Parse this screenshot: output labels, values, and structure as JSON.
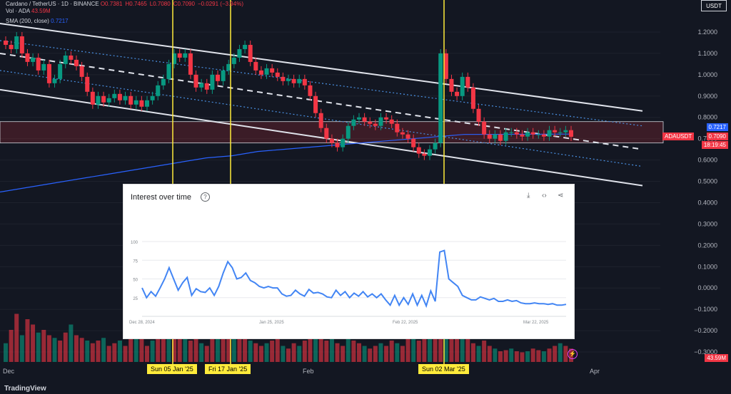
{
  "header": {
    "symbol_title": "Cardano / TetherUS · 1D · BINANCE",
    "ohlc_values": [
      "O0.7381",
      "H0.7465",
      "L0.7080",
      "C0.7090",
      "−0.0291 (−3.94%)"
    ],
    "vol_label": "Vol · ADA",
    "vol_value": "43.59M",
    "sma_label": "SMA (200, close)",
    "sma_value": "0.7217",
    "unit": "USDT"
  },
  "price_labels": {
    "sma": "0.7217",
    "symbol": "ADAUSDT",
    "last": "0.7090",
    "countdown": "18:19:45",
    "volume": "43.59M"
  },
  "footer": {
    "brand": "TradingView"
  },
  "marked_dates": [
    "Sun 05 Jan '25",
    "Fri 17 Jan '25",
    "Sun 02 Mar '25"
  ],
  "colors": {
    "up": "#089981",
    "down": "#f23645",
    "sma": "#2962ff",
    "marker": "#ffeb3b",
    "trends": "#4a90e2"
  },
  "chart_data": [
    {
      "type": "candlestick",
      "title": "Cardano / TetherUS · 1D · BINANCE",
      "ylabel": "USDT",
      "ylim": [
        -0.3,
        1.28
      ],
      "yticks": [
        1.2,
        1.1,
        1.0,
        0.9,
        0.8,
        0.7,
        0.6,
        0.5,
        0.4,
        0.3,
        0.2,
        0.1,
        0.0,
        -0.1,
        -0.2,
        -0.3
      ],
      "ytick_labels": [
        "1.2000",
        "1.1000",
        "1.0000",
        "0.9000",
        "0.8000",
        "0.7000",
        "0.6000",
        "0.5000",
        "0.4000",
        "0.3000",
        "0.2000",
        "0.1000",
        "0.0000",
        "−0.1000",
        "−0.2000",
        "−0.3000"
      ],
      "xtick_labels": [
        "Dec",
        "Feb",
        "Apr"
      ],
      "close": [
        1.14,
        1.12,
        1.18,
        1.1,
        1.06,
        1.08,
        1.02,
        1.05,
        0.96,
        0.98,
        1.05,
        1.09,
        1.07,
        1.04,
        0.99,
        0.92,
        0.86,
        0.9,
        0.87,
        0.89,
        0.91,
        0.88,
        0.9,
        0.86,
        0.88,
        0.85,
        0.88,
        0.9,
        0.95,
        0.98,
        1.05,
        1.1,
        1.08,
        1.1,
        1.0,
        0.94,
        0.96,
        0.93,
        1.0,
        0.97,
        1.02,
        1.05,
        1.08,
        1.12,
        1.14,
        1.06,
        1.02,
        1.0,
        1.03,
        1.01,
        0.99,
        0.97,
        0.98,
        0.96,
        0.98,
        0.95,
        0.9,
        0.82,
        0.75,
        0.7,
        0.68,
        0.66,
        0.7,
        0.76,
        0.79,
        0.8,
        0.78,
        0.77,
        0.76,
        0.8,
        0.79,
        0.77,
        0.73,
        0.72,
        0.7,
        0.66,
        0.63,
        0.62,
        0.65,
        0.68,
        1.1,
        0.98,
        0.92,
        0.9,
        0.99,
        0.94,
        0.84,
        0.78,
        0.72,
        0.7,
        0.72,
        0.69,
        0.73,
        0.73,
        0.72,
        0.71,
        0.73,
        0.72,
        0.72,
        0.71,
        0.74,
        0.73,
        0.73,
        0.74,
        0.709
      ],
      "sma_200": [
        0.45,
        0.47,
        0.49,
        0.51,
        0.53,
        0.55,
        0.57,
        0.59,
        0.61,
        0.62,
        0.64,
        0.65,
        0.66,
        0.67,
        0.68,
        0.69,
        0.7,
        0.71,
        0.72
      ],
      "volume_relative": [
        0.35,
        0.6,
        0.9,
        0.5,
        0.8,
        0.7,
        0.55,
        0.6,
        0.5,
        0.45,
        0.4,
        0.55,
        0.7,
        0.5,
        0.45,
        0.4,
        0.35,
        0.4,
        0.45,
        0.3,
        0.35,
        0.4,
        0.3,
        0.55,
        0.6,
        0.45,
        0.3,
        0.4,
        0.55,
        0.45,
        0.7,
        0.5,
        0.45,
        0.6,
        0.4,
        0.5,
        0.35,
        0.3,
        0.45,
        0.6,
        0.7,
        0.45,
        0.55,
        0.65,
        0.5,
        0.4,
        0.35,
        0.3,
        0.35,
        0.4,
        0.45,
        0.3,
        0.25,
        0.35,
        0.3,
        0.4,
        0.5,
        0.6,
        0.45,
        0.4,
        0.5,
        0.35,
        0.3,
        0.45,
        0.4,
        0.35,
        0.3,
        0.25,
        0.3,
        0.35,
        0.3,
        0.4,
        0.35,
        0.3,
        0.45,
        0.5,
        0.4,
        0.55,
        0.45,
        0.6,
        0.9,
        0.55,
        0.45,
        0.5,
        0.55,
        0.45,
        0.35,
        0.3,
        0.4,
        0.3,
        0.25,
        0.2,
        0.22,
        0.25,
        0.2,
        0.18,
        0.2,
        0.25,
        0.22,
        0.2,
        0.25,
        0.3,
        0.35,
        0.3,
        0.25
      ]
    },
    {
      "type": "line",
      "title": "Interest over time",
      "x_labels": [
        "Dec 28, 2024",
        "Jan 25, 2025",
        "Feb 22, 2025",
        "Mar 22, 2025"
      ],
      "ylim": [
        0,
        100
      ],
      "yticks": [
        100,
        75,
        50,
        25
      ],
      "values": [
        38,
        25,
        33,
        27,
        38,
        50,
        65,
        50,
        35,
        45,
        52,
        28,
        37,
        33,
        32,
        38,
        28,
        40,
        58,
        73,
        65,
        50,
        52,
        58,
        48,
        45,
        40,
        38,
        40,
        38,
        38,
        30,
        27,
        28,
        35,
        30,
        27,
        36,
        31,
        32,
        30,
        26,
        25,
        35,
        28,
        33,
        25,
        31,
        27,
        33,
        26,
        30,
        25,
        30,
        22,
        15,
        28,
        15,
        25,
        16,
        30,
        15,
        28,
        14,
        34,
        20,
        86,
        88,
        50,
        45,
        40,
        28,
        25,
        22,
        22,
        26,
        24,
        22,
        24,
        20,
        20,
        22,
        20,
        21,
        18,
        17,
        17,
        18,
        17,
        17,
        16,
        17,
        15,
        15,
        16
      ]
    }
  ]
}
